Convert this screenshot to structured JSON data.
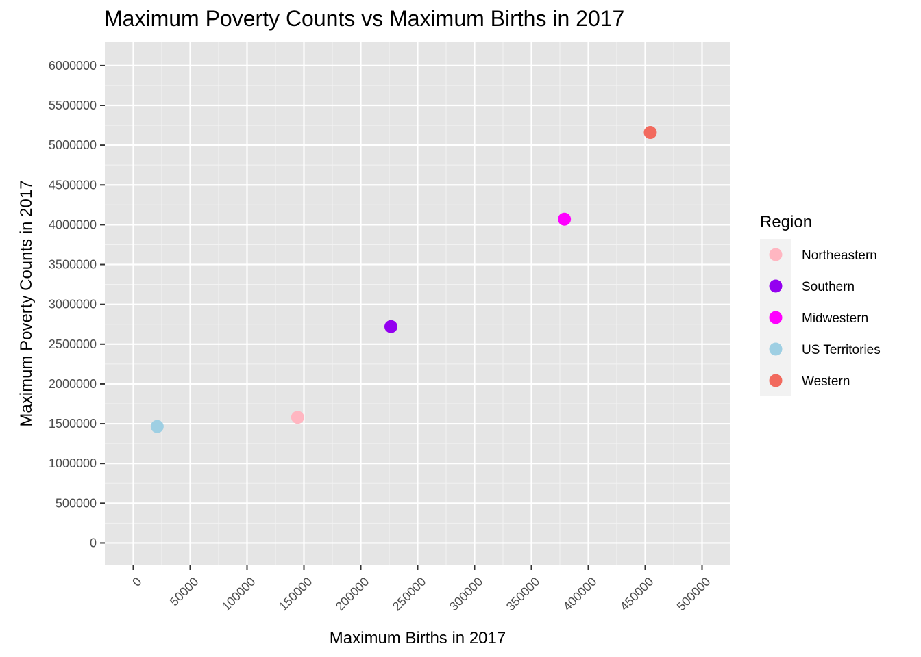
{
  "chart_data": {
    "type": "scatter",
    "title": "Maximum Poverty Counts vs Maximum Births in 2017",
    "xlabel": "Maximum Births in 2017",
    "ylabel": "Maximum Poverty Counts in 2017",
    "xlim": [
      -25000,
      525000
    ],
    "ylim": [
      -280000,
      6300000
    ],
    "x_ticks": [
      0,
      50000,
      100000,
      150000,
      200000,
      250000,
      300000,
      350000,
      400000,
      450000,
      500000
    ],
    "x_tick_labels": [
      "0",
      "50000",
      "100000",
      "150000",
      "200000",
      "250000",
      "300000",
      "350000",
      "400000",
      "450000",
      "500000"
    ],
    "y_ticks": [
      0,
      500000,
      1000000,
      1500000,
      2000000,
      2500000,
      3000000,
      3500000,
      4000000,
      4500000,
      5000000,
      5500000,
      6000000
    ],
    "y_tick_labels": [
      "0",
      "500000",
      "1000000",
      "1500000",
      "2000000",
      "2500000",
      "3000000",
      "3500000",
      "4000000",
      "4500000",
      "5000000",
      "5500000",
      "6000000"
    ],
    "grid": true,
    "panel_background": "#e5e5e5",
    "legend": {
      "title": "Region",
      "position": "right"
    },
    "series": [
      {
        "name": "Northeastern",
        "color": "#ffb6c1",
        "points": [
          {
            "x": 144500,
            "y": 1580000
          }
        ]
      },
      {
        "name": "Southern",
        "color": "#9400f0",
        "points": [
          {
            "x": 226500,
            "y": 2720000
          }
        ]
      },
      {
        "name": "Midwestern",
        "color": "#ff00ff",
        "points": [
          {
            "x": 379000,
            "y": 4070000
          }
        ]
      },
      {
        "name": "US Territories",
        "color": "#9ecfe3",
        "points": [
          {
            "x": 21000,
            "y": 1465000
          }
        ]
      },
      {
        "name": "Western",
        "color": "#f26a5e",
        "points": [
          {
            "x": 454500,
            "y": 5160000
          }
        ]
      }
    ]
  }
}
